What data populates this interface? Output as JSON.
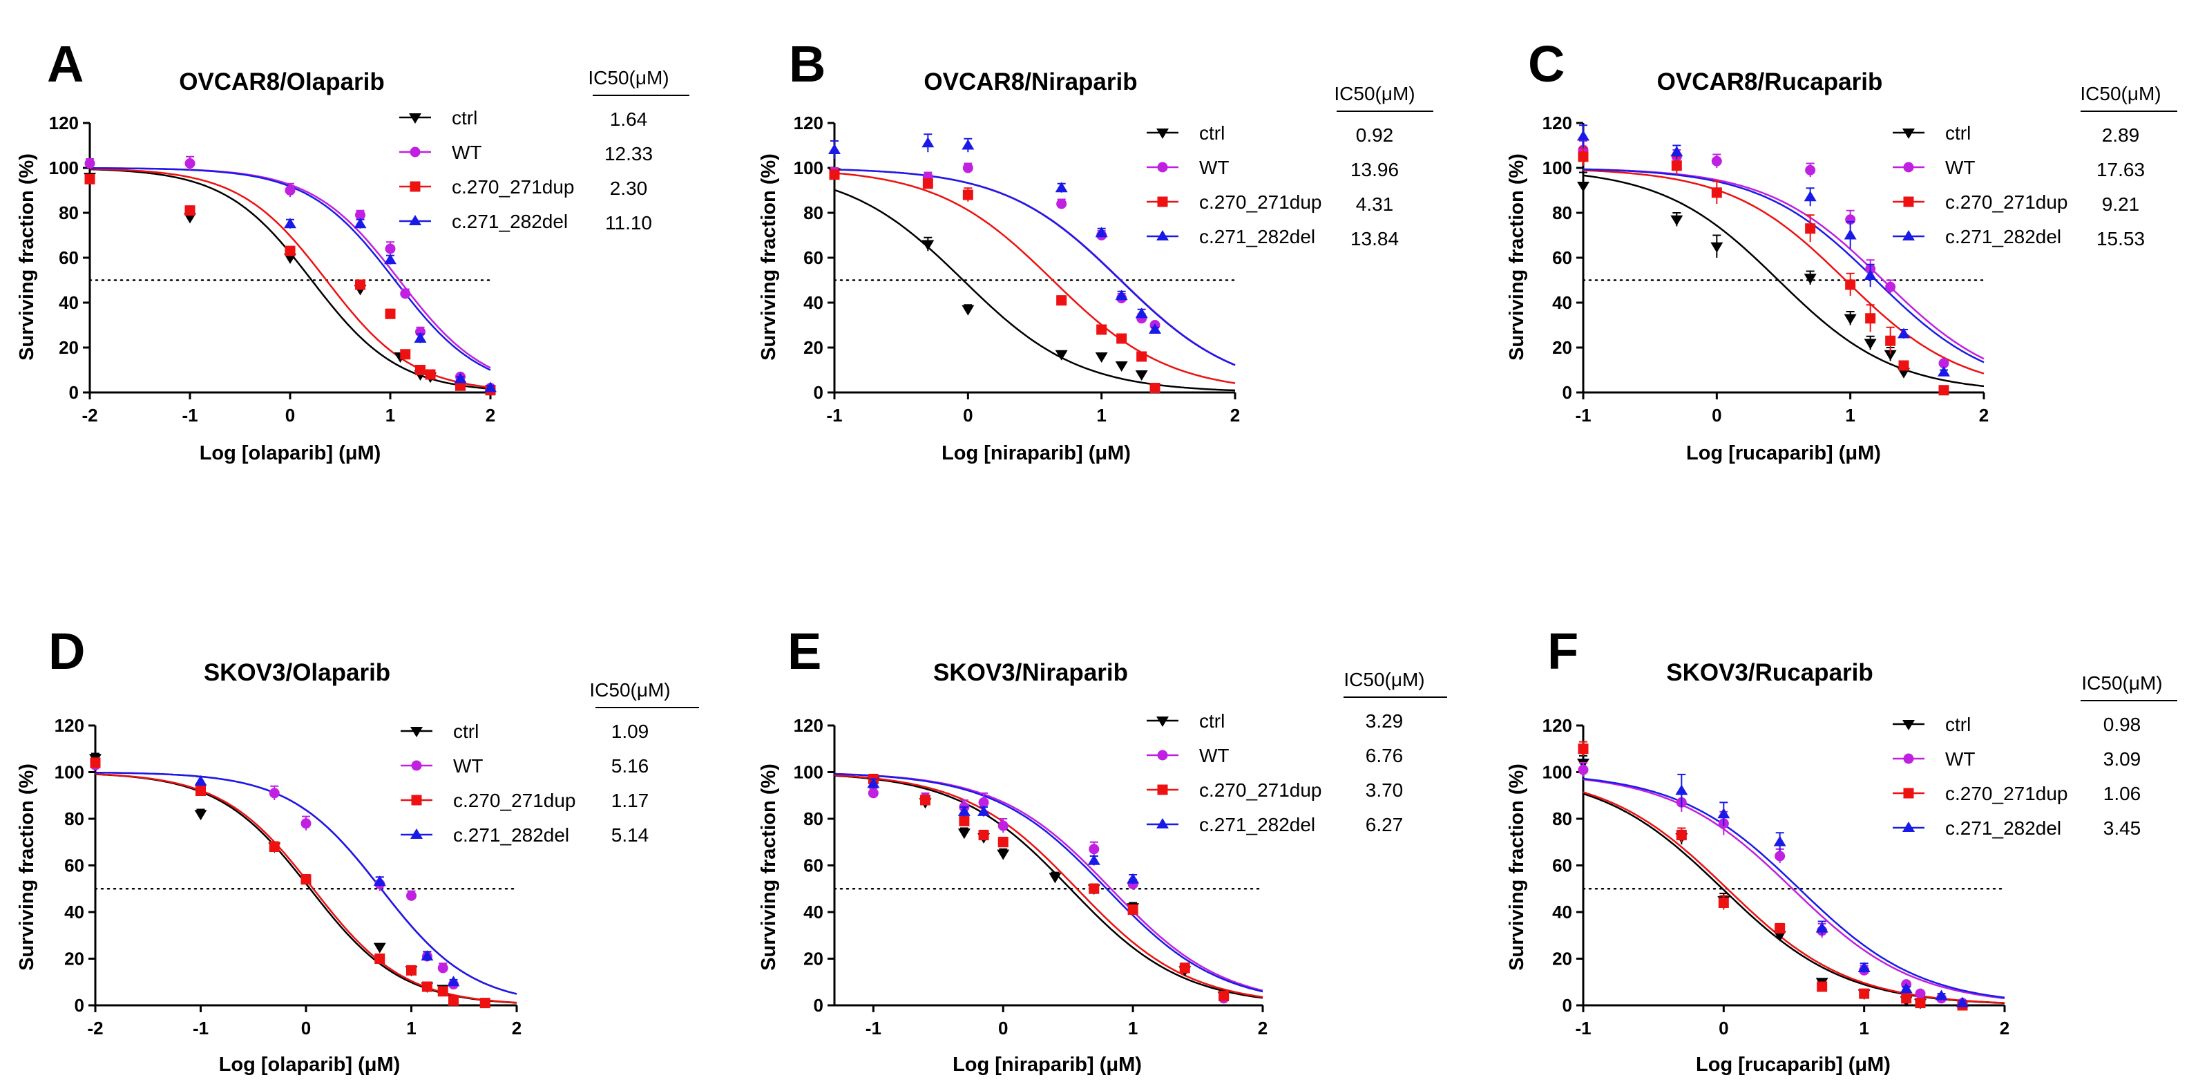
{
  "series_styles": {
    "ctrl": {
      "color": "#000000",
      "marker": "triangle-down"
    },
    "WT": {
      "color": "#c020e0",
      "marker": "circle"
    },
    "c.270_271dup": {
      "color": "#ee1111",
      "marker": "square"
    },
    "c.271_282del": {
      "color": "#1a1ae8",
      "marker": "triangle-up"
    }
  },
  "chart_data": [
    {
      "type": "scatter",
      "panel_letter": "A",
      "title": "OVCAR8/Olaparib",
      "xlabel": "Log [olaparib] (μM)",
      "ylabel": "Surviving fraction (%)",
      "xlim": [
        -2,
        2
      ],
      "ylim": [
        0,
        120
      ],
      "xticks": [
        "-2",
        "-1",
        "0",
        "1",
        "2"
      ],
      "yticks": [
        "0",
        "20",
        "40",
        "60",
        "80",
        "100",
        "120"
      ],
      "reference_line_y": 50,
      "ic50_header": "IC50(μM)",
      "series": [
        {
          "name": "ctrl",
          "ic50_label": "1.64",
          "ic50": 1.64,
          "x": [
            -2,
            -1,
            0,
            0.7,
            1.1,
            1.3,
            1.4
          ],
          "y": [
            96,
            78,
            60,
            46,
            16,
            8,
            7
          ],
          "err": [
            0,
            2,
            2,
            2,
            1,
            1,
            1
          ]
        },
        {
          "name": "WT",
          "ic50_label": "12.33",
          "ic50": 12.33,
          "x": [
            -2,
            -1,
            0,
            0.7,
            1.0,
            1.15,
            1.3,
            1.7,
            2.0
          ],
          "y": [
            102,
            102,
            90,
            79,
            64,
            44,
            27,
            7,
            2
          ],
          "err": [
            2,
            3,
            3,
            2,
            3,
            2,
            2,
            1,
            1
          ]
        },
        {
          "name": "c.270_271dup",
          "ic50_label": "2.30",
          "ic50": 2.3,
          "x": [
            -2,
            -1,
            0,
            0.7,
            1.0,
            1.15,
            1.3,
            1.4,
            1.7,
            2.0
          ],
          "y": [
            95,
            81,
            63,
            48,
            35,
            17,
            10,
            8,
            3,
            1
          ],
          "err": [
            2,
            2,
            2,
            2,
            2,
            1,
            1,
            1,
            1,
            1
          ]
        },
        {
          "name": "c.271_282del",
          "ic50_label": "11.10",
          "ic50": 11.1,
          "x": [
            0,
            0.7,
            1.0,
            1.3,
            1.7,
            2.0
          ],
          "y": [
            75,
            75,
            59,
            24,
            6,
            2
          ],
          "err": [
            2,
            2,
            2,
            2,
            1,
            1
          ]
        }
      ]
    },
    {
      "type": "scatter",
      "panel_letter": "B",
      "title": "OVCAR8/Niraparib",
      "xlabel": "Log [niraparib] (μM)",
      "ylabel": "Surviving fraction (%)",
      "xlim": [
        -1,
        2
      ],
      "ylim": [
        0,
        120
      ],
      "xticks": [
        "-1",
        "0",
        "1",
        "2"
      ],
      "yticks": [
        "0",
        "20",
        "40",
        "60",
        "80",
        "100",
        "120"
      ],
      "reference_line_y": 50,
      "ic50_header": "IC50(μM)",
      "series": [
        {
          "name": "ctrl",
          "ic50_label": "0.92",
          "ic50": 0.92,
          "x": [
            -1,
            -0.3,
            0,
            0.7,
            1.0,
            1.15,
            1.3
          ],
          "y": [
            98,
            66,
            37,
            17,
            16,
            12,
            8
          ],
          "err": [
            2,
            3,
            2,
            1,
            1,
            1,
            1
          ]
        },
        {
          "name": "WT",
          "ic50_label": "13.96",
          "ic50": 13.96,
          "x": [
            -1,
            -0.3,
            0,
            0.7,
            1.0,
            1.15,
            1.3,
            1.4
          ],
          "y": [
            98,
            96,
            100,
            84,
            70,
            42,
            33,
            30
          ],
          "err": [
            2,
            2,
            2,
            2,
            2,
            2,
            2,
            1
          ]
        },
        {
          "name": "c.270_271dup",
          "ic50_label": "4.31",
          "ic50": 4.31,
          "x": [
            -1,
            -0.3,
            0,
            0.7,
            1.0,
            1.15,
            1.3,
            1.4
          ],
          "y": [
            97,
            93,
            88,
            41,
            28,
            24,
            16,
            2
          ],
          "err": [
            2,
            2,
            3,
            2,
            2,
            1,
            1,
            1
          ]
        },
        {
          "name": "c.271_282del",
          "ic50_label": "13.84",
          "ic50": 13.84,
          "x": [
            -1,
            -0.3,
            0,
            0.7,
            1.0,
            1.15,
            1.3,
            1.4
          ],
          "y": [
            108,
            111,
            110,
            91,
            71,
            43,
            35,
            28
          ],
          "err": [
            4,
            4,
            3,
            2,
            2,
            2,
            2,
            1
          ]
        }
      ]
    },
    {
      "type": "scatter",
      "panel_letter": "C",
      "title": "OVCAR8/Rucaparib",
      "xlabel": "Log [rucaparib] (μM)",
      "ylabel": "Surviving fraction (%)",
      "xlim": [
        -1,
        2
      ],
      "ylim": [
        0,
        120
      ],
      "xticks": [
        "-1",
        "0",
        "1",
        "2"
      ],
      "yticks": [
        "0",
        "20",
        "40",
        "60",
        "80",
        "100",
        "120"
      ],
      "reference_line_y": 50,
      "ic50_header": "IC50(μM)",
      "series": [
        {
          "name": "ctrl",
          "ic50_label": "2.89",
          "ic50": 2.89,
          "x": [
            -1,
            -0.3,
            0,
            0.7,
            1.0,
            1.15,
            1.3,
            1.4
          ],
          "y": [
            92,
            77,
            65,
            51,
            33,
            22,
            17,
            9
          ],
          "err": [
            6,
            3,
            5,
            3,
            3,
            3,
            3,
            1
          ]
        },
        {
          "name": "WT",
          "ic50_label": "17.63",
          "ic50": 17.63,
          "x": [
            -1,
            -0.3,
            0,
            0.7,
            1.0,
            1.15,
            1.3,
            1.7
          ],
          "y": [
            108,
            105,
            103,
            99,
            77,
            55,
            47,
            13
          ],
          "err": [
            4,
            3,
            3,
            3,
            4,
            4,
            3,
            1
          ]
        },
        {
          "name": "c.270_271dup",
          "ic50_label": "9.21",
          "ic50": 9.21,
          "x": [
            -1,
            -0.3,
            0,
            0.7,
            1.0,
            1.15,
            1.3,
            1.4,
            1.7
          ],
          "y": [
            105,
            101,
            89,
            73,
            48,
            33,
            23,
            12,
            1
          ],
          "err": [
            4,
            4,
            5,
            6,
            5,
            6,
            6,
            2,
            1
          ]
        },
        {
          "name": "c.271_282del",
          "ic50_label": "15.53",
          "ic50": 15.53,
          "x": [
            -1,
            -0.3,
            0.7,
            1.0,
            1.15,
            1.4,
            1.7
          ],
          "y": [
            114,
            107,
            87,
            70,
            52,
            26,
            9
          ],
          "err": [
            5,
            3,
            4,
            6,
            5,
            2,
            1
          ]
        }
      ]
    },
    {
      "type": "scatter",
      "panel_letter": "D",
      "title": "SKOV3/Olaparib",
      "xlabel": "Log [olaparib] (μM)",
      "ylabel": "Surviving fraction (%)",
      "xlim": [
        -2,
        2
      ],
      "ylim": [
        0,
        120
      ],
      "xticks": [
        "-2",
        "-1",
        "0",
        "1",
        "2"
      ],
      "yticks": [
        "0",
        "20",
        "40",
        "60",
        "80",
        "100",
        "120"
      ],
      "reference_line_y": 50,
      "ic50_header": "IC50(μM)",
      "series": [
        {
          "name": "ctrl",
          "ic50_label": "1.09",
          "ic50": 1.09,
          "x": [
            -2,
            -1,
            -0.3,
            0.7,
            1.0,
            1.15,
            1.3
          ],
          "y": [
            106,
            82,
            68,
            25,
            15,
            8,
            7
          ],
          "err": [
            2,
            2,
            2,
            1,
            1,
            1,
            1
          ]
        },
        {
          "name": "WT",
          "ic50_label": "5.16",
          "ic50": 5.16,
          "x": [
            -2,
            -1,
            -0.3,
            0,
            0.7,
            1.0,
            1.15,
            1.3,
            1.4,
            1.7
          ],
          "y": [
            103,
            93,
            91,
            78,
            52,
            47,
            21,
            16,
            9,
            1
          ],
          "err": [
            2,
            2,
            3,
            3,
            3,
            2,
            2,
            2,
            1,
            1
          ]
        },
        {
          "name": "c.270_271dup",
          "ic50_label": "1.17",
          "ic50": 1.17,
          "x": [
            -2,
            -1,
            -0.3,
            0,
            0.7,
            1.0,
            1.15,
            1.3,
            1.4,
            1.7
          ],
          "y": [
            104,
            92,
            68,
            54,
            20,
            15,
            8,
            6,
            2,
            1
          ],
          "err": [
            2,
            2,
            2,
            2,
            1,
            1,
            1,
            1,
            1,
            1
          ]
        },
        {
          "name": "c.271_282del",
          "ic50_label": "5.14",
          "ic50": 5.14,
          "x": [
            -1,
            0.7,
            1.15,
            1.4
          ],
          "y": [
            96,
            53,
            21,
            10
          ],
          "err": [
            2,
            2,
            2,
            1
          ]
        }
      ]
    },
    {
      "type": "scatter",
      "panel_letter": "E",
      "title": "SKOV3/Niraparib",
      "xlabel": "Log [niraparib] (μM)",
      "ylabel": "Surviving fraction (%)",
      "xlim": [
        -1.3,
        2
      ],
      "ylim": [
        0,
        120
      ],
      "xticks": [
        "-1",
        "0",
        "1",
        "2"
      ],
      "yticks": [
        "0",
        "20",
        "40",
        "60",
        "80",
        "100",
        "120"
      ],
      "reference_line_y": 50,
      "ic50_header": "IC50(μM)",
      "series": [
        {
          "name": "ctrl",
          "ic50_label": "3.29",
          "ic50": 3.29,
          "x": [
            -1,
            -0.6,
            -0.3,
            -0.15,
            0,
            0.4,
            0.7,
            1.0,
            1.4,
            1.7
          ],
          "y": [
            96,
            87,
            74,
            72,
            65,
            55,
            50,
            42,
            15,
            4
          ],
          "err": [
            2,
            2,
            2,
            2,
            2,
            2,
            2,
            2,
            2,
            1
          ]
        },
        {
          "name": "WT",
          "ic50_label": "6.76",
          "ic50": 6.76,
          "x": [
            -1,
            -0.6,
            -0.3,
            -0.15,
            0,
            0.7,
            1.0,
            1.4,
            1.7
          ],
          "y": [
            91,
            89,
            85,
            87,
            77,
            67,
            52,
            16,
            3
          ],
          "err": [
            2,
            2,
            3,
            4,
            3,
            3,
            2,
            2,
            1
          ]
        },
        {
          "name": "c.270_271dup",
          "ic50_label": "3.70",
          "ic50": 3.7,
          "x": [
            -1,
            -0.6,
            -0.3,
            -0.15,
            0,
            0.7,
            1.0,
            1.4,
            1.7
          ],
          "y": [
            97,
            88,
            79,
            73,
            70,
            50,
            41,
            16,
            4
          ],
          "err": [
            2,
            2,
            2,
            2,
            2,
            2,
            2,
            2,
            1
          ]
        },
        {
          "name": "c.271_282del",
          "ic50_label": "6.27",
          "ic50": 6.27,
          "x": [
            -1,
            -0.3,
            -0.15,
            0.7,
            1.0
          ],
          "y": [
            95,
            83,
            83,
            62,
            54
          ],
          "err": [
            2,
            2,
            2,
            2,
            2
          ]
        }
      ]
    },
    {
      "type": "scatter",
      "panel_letter": "F",
      "title": "SKOV3/Rucaparib",
      "xlabel": "Log [rucaparib] (μM)",
      "ylabel": "Surviving fraction (%)",
      "xlim": [
        -1,
        2
      ],
      "ylim": [
        0,
        120
      ],
      "xticks": [
        "-1",
        "0",
        "1",
        "2"
      ],
      "yticks": [
        "0",
        "20",
        "40",
        "60",
        "80",
        "100",
        "120"
      ],
      "reference_line_y": 50,
      "ic50_header": "IC50(μM)",
      "series": [
        {
          "name": "ctrl",
          "ic50_label": "0.98",
          "ic50": 0.98,
          "x": [
            -1,
            -0.3,
            0,
            0.4,
            0.7,
            1.0,
            1.3,
            1.4
          ],
          "y": [
            104,
            72,
            45,
            30,
            10,
            5,
            2,
            1
          ],
          "err": [
            3,
            3,
            3,
            2,
            1,
            1,
            1,
            1
          ]
        },
        {
          "name": "WT",
          "ic50_label": "3.09",
          "ic50": 3.09,
          "x": [
            -1,
            -0.3,
            0,
            0.4,
            0.7,
            1.0,
            1.3,
            1.4,
            1.55,
            1.7
          ],
          "y": [
            101,
            87,
            78,
            64,
            32,
            15,
            9,
            5,
            3,
            1
          ],
          "err": [
            3,
            4,
            5,
            3,
            3,
            2,
            1,
            1,
            1,
            1
          ]
        },
        {
          "name": "c.270_271dup",
          "ic50_label": "1.06",
          "ic50": 1.06,
          "x": [
            -1,
            -0.3,
            0,
            0.4,
            0.7,
            1.0,
            1.3,
            1.4,
            1.7
          ],
          "y": [
            110,
            73,
            44,
            33,
            8,
            5,
            3,
            1,
            0
          ],
          "err": [
            3,
            3,
            3,
            2,
            1,
            1,
            1,
            1,
            1
          ]
        },
        {
          "name": "c.271_282del",
          "ic50_label": "3.45",
          "ic50": 3.45,
          "x": [
            -0.3,
            0,
            0.4,
            0.7,
            1.0,
            1.3,
            1.55,
            1.7
          ],
          "y": [
            92,
            82,
            70,
            33,
            16,
            7,
            4,
            1
          ],
          "err": [
            7,
            5,
            4,
            3,
            2,
            1,
            1,
            1
          ]
        }
      ]
    }
  ]
}
